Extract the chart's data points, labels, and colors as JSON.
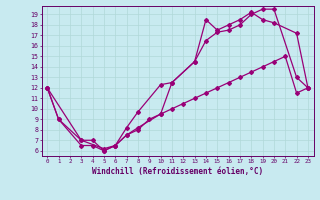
{
  "xlabel": "Windchill (Refroidissement éolien,°C)",
  "bg_color": "#c8eaf0",
  "line_color": "#990077",
  "grid_color": "#aacccc",
  "axis_color": "#660066",
  "tick_color": "#660066",
  "xlim": [
    -0.5,
    23.5
  ],
  "ylim": [
    5.5,
    19.8
  ],
  "yticks": [
    6,
    7,
    8,
    9,
    10,
    11,
    12,
    13,
    14,
    15,
    16,
    17,
    18,
    19
  ],
  "xticks": [
    0,
    1,
    2,
    3,
    4,
    5,
    6,
    7,
    8,
    9,
    10,
    11,
    12,
    13,
    14,
    15,
    16,
    17,
    18,
    19,
    20,
    21,
    22,
    23
  ],
  "line1_x": [
    0,
    1,
    3,
    4,
    5,
    6,
    7,
    8,
    10,
    11,
    13,
    14,
    15,
    16,
    17,
    18,
    19,
    20,
    22,
    23
  ],
  "line1_y": [
    12,
    9,
    6.5,
    6.5,
    6,
    6.5,
    7.5,
    8.2,
    9.5,
    12.5,
    14.5,
    16.5,
    17.3,
    17.5,
    18,
    19,
    19.5,
    19.5,
    13,
    12
  ],
  "line2_x": [
    0,
    1,
    3,
    4,
    5,
    6,
    7,
    8,
    10,
    11,
    13,
    14,
    15,
    16,
    17,
    18,
    19,
    20,
    22,
    23
  ],
  "line2_y": [
    12,
    9,
    7,
    7,
    6,
    6.5,
    8.2,
    9.7,
    12.3,
    12.5,
    14.5,
    18.5,
    17.5,
    18,
    18.5,
    19.2,
    18.5,
    18.2,
    17.2,
    12
  ],
  "line3_x": [
    0,
    3,
    5,
    6,
    7,
    8,
    9,
    10,
    11,
    12,
    13,
    14,
    15,
    16,
    17,
    18,
    19,
    20,
    21,
    22,
    23
  ],
  "line3_y": [
    12,
    7,
    6.2,
    6.5,
    7.5,
    8,
    9,
    9.5,
    10,
    10.5,
    11,
    11.5,
    12,
    12.5,
    13,
    13.5,
    14,
    14.5,
    15,
    11.5,
    12
  ]
}
